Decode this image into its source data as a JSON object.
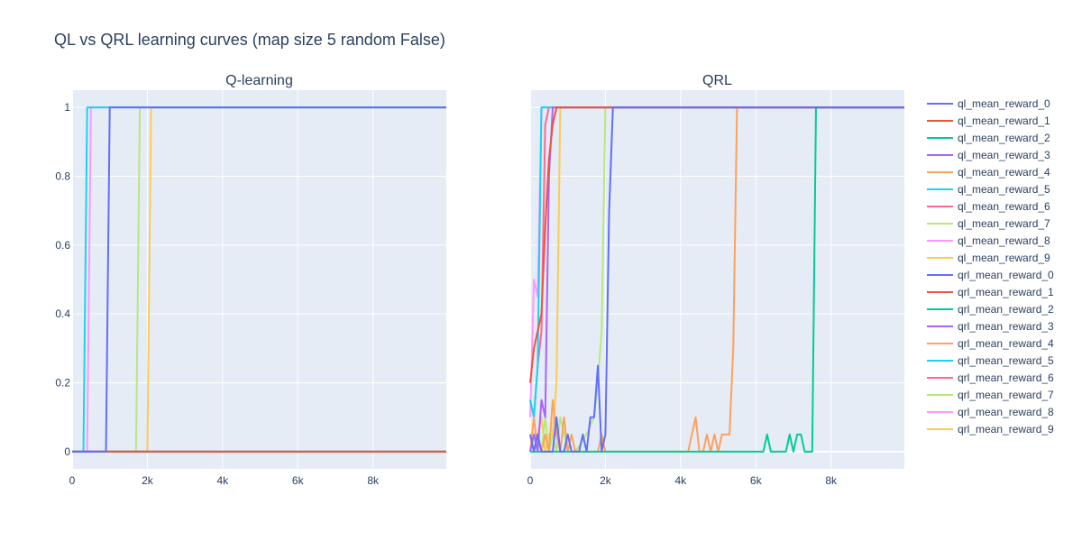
{
  "title": "QL vs QRL learning curves (map size 5 random False)",
  "chart_data": {
    "type": "line",
    "title": "QL vs QRL learning curves (map size 5 random False)",
    "grid": true,
    "legend_position": "right",
    "xlim": [
      0,
      9950
    ],
    "ylim": [
      -0.05,
      1.05
    ],
    "x_ticks": [
      {
        "value": 0,
        "label": "0"
      },
      {
        "value": 2000,
        "label": "2k"
      },
      {
        "value": 4000,
        "label": "4k"
      },
      {
        "value": 6000,
        "label": "6k"
      },
      {
        "value": 8000,
        "label": "8k"
      }
    ],
    "y_ticks": [
      {
        "value": 0,
        "label": "0"
      },
      {
        "value": 0.2,
        "label": "0.2"
      },
      {
        "value": 0.4,
        "label": "0.4"
      },
      {
        "value": 0.6,
        "label": "0.6"
      },
      {
        "value": 0.8,
        "label": "0.8"
      },
      {
        "value": 1,
        "label": "1"
      }
    ],
    "subplots": [
      {
        "title": "Q-learning",
        "series": [
          {
            "name": "ql_mean_reward_0",
            "color": "#636efa",
            "points": [
              [
                0,
                0
              ],
              [
                900,
                0
              ],
              [
                1000,
                1
              ],
              [
                9950,
                1
              ]
            ]
          },
          {
            "name": "ql_mean_reward_1",
            "color": "#EF553B",
            "points": [
              [
                0,
                0
              ],
              [
                9950,
                0
              ]
            ]
          },
          {
            "name": "ql_mean_reward_2",
            "color": "#00cc96",
            "points": [
              [
                0,
                0
              ],
              [
                9950,
                0
              ]
            ]
          },
          {
            "name": "ql_mean_reward_3",
            "color": "#ab63fa",
            "points": [
              [
                0,
                0
              ],
              [
                9950,
                0
              ]
            ]
          },
          {
            "name": "ql_mean_reward_4",
            "color": "#FFA15A",
            "points": [
              [
                0,
                0
              ],
              [
                9950,
                0
              ]
            ]
          },
          {
            "name": "ql_mean_reward_5",
            "color": "#19d3f3",
            "points": [
              [
                0,
                0
              ],
              [
                300,
                0
              ],
              [
                400,
                1
              ],
              [
                9950,
                1
              ]
            ]
          },
          {
            "name": "ql_mean_reward_6",
            "color": "#FF6692",
            "points": [
              [
                0,
                0
              ],
              [
                9950,
                0
              ]
            ]
          },
          {
            "name": "ql_mean_reward_7",
            "color": "#B6E880",
            "points": [
              [
                0,
                0
              ],
              [
                1700,
                0
              ],
              [
                1800,
                1
              ],
              [
                9950,
                1
              ]
            ]
          },
          {
            "name": "ql_mean_reward_8",
            "color": "#FF97FF",
            "points": [
              [
                0,
                0
              ],
              [
                400,
                0
              ],
              [
                500,
                1
              ],
              [
                9950,
                1
              ]
            ]
          },
          {
            "name": "ql_mean_reward_9",
            "color": "#FECB52",
            "points": [
              [
                0,
                0
              ],
              [
                2000,
                0
              ],
              [
                2100,
                1
              ],
              [
                9950,
                1
              ]
            ]
          }
        ]
      },
      {
        "title": "QRL",
        "series": [
          {
            "name": "qrl_mean_reward_0",
            "color": "#636efa",
            "points": [
              [
                0,
                0.05
              ],
              [
                100,
                0
              ],
              [
                200,
                0.05
              ],
              [
                300,
                0
              ],
              [
                400,
                0
              ],
              [
                500,
                0
              ],
              [
                600,
                0
              ],
              [
                700,
                0.1
              ],
              [
                800,
                0
              ],
              [
                900,
                0
              ],
              [
                1000,
                0.05
              ],
              [
                1100,
                0
              ],
              [
                1200,
                0
              ],
              [
                1300,
                0
              ],
              [
                1400,
                0.05
              ],
              [
                1500,
                0
              ],
              [
                1600,
                0.1
              ],
              [
                1700,
                0.1
              ],
              [
                1800,
                0.25
              ],
              [
                1900,
                0
              ],
              [
                2000,
                0.05
              ],
              [
                2100,
                0.7
              ],
              [
                2200,
                1
              ],
              [
                9950,
                1
              ]
            ]
          },
          {
            "name": "qrl_mean_reward_1",
            "color": "#EF553B",
            "points": [
              [
                0,
                0.2
              ],
              [
                100,
                0.3
              ],
              [
                200,
                0.35
              ],
              [
                300,
                0.4
              ],
              [
                400,
                0.65
              ],
              [
                500,
                0.85
              ],
              [
                600,
                0.95
              ],
              [
                700,
                1
              ],
              [
                9950,
                1
              ]
            ]
          },
          {
            "name": "qrl_mean_reward_2",
            "color": "#00cc96",
            "points": [
              [
                0,
                0
              ],
              [
                4400,
                0
              ],
              [
                5000,
                0
              ],
              [
                6000,
                0
              ],
              [
                6200,
                0
              ],
              [
                6300,
                0.05
              ],
              [
                6400,
                0
              ],
              [
                6700,
                0
              ],
              [
                6800,
                0
              ],
              [
                6900,
                0.05
              ],
              [
                7000,
                0
              ],
              [
                7100,
                0.05
              ],
              [
                7200,
                0.05
              ],
              [
                7300,
                0
              ],
              [
                7500,
                0
              ],
              [
                7600,
                1
              ],
              [
                9950,
                1
              ]
            ]
          },
          {
            "name": "qrl_mean_reward_3",
            "color": "#ab63fa",
            "points": [
              [
                0,
                0
              ],
              [
                100,
                0.05
              ],
              [
                200,
                0
              ],
              [
                300,
                0.15
              ],
              [
                400,
                0.1
              ],
              [
                500,
                0.8
              ],
              [
                600,
                1
              ],
              [
                9950,
                1
              ]
            ]
          },
          {
            "name": "qrl_mean_reward_4",
            "color": "#FFA15A",
            "points": [
              [
                0,
                0
              ],
              [
                100,
                0.1
              ],
              [
                200,
                0
              ],
              [
                300,
                0
              ],
              [
                400,
                0.05
              ],
              [
                500,
                0
              ],
              [
                600,
                0.15
              ],
              [
                700,
                0.05
              ],
              [
                800,
                0
              ],
              [
                900,
                0.1
              ],
              [
                1000,
                0
              ],
              [
                1100,
                0.05
              ],
              [
                1200,
                0
              ],
              [
                1800,
                0
              ],
              [
                1900,
                0.05
              ],
              [
                2000,
                0
              ],
              [
                4200,
                0
              ],
              [
                4300,
                0.05
              ],
              [
                4400,
                0.1
              ],
              [
                4500,
                0
              ],
              [
                4600,
                0
              ],
              [
                4700,
                0.05
              ],
              [
                4800,
                0
              ],
              [
                4900,
                0.05
              ],
              [
                5000,
                0
              ],
              [
                5100,
                0.05
              ],
              [
                5200,
                0.05
              ],
              [
                5300,
                0.05
              ],
              [
                5400,
                0.3
              ],
              [
                5500,
                1
              ],
              [
                9950,
                1
              ]
            ]
          },
          {
            "name": "qrl_mean_reward_5",
            "color": "#19d3f3",
            "points": [
              [
                0,
                0.15
              ],
              [
                100,
                0.1
              ],
              [
                200,
                0.25
              ],
              [
                300,
                1
              ],
              [
                9950,
                1
              ]
            ]
          },
          {
            "name": "qrl_mean_reward_6",
            "color": "#FF6692",
            "points": [
              [
                0,
                0.15
              ],
              [
                100,
                0.1
              ],
              [
                200,
                0.25
              ],
              [
                300,
                0.35
              ],
              [
                400,
                0.95
              ],
              [
                500,
                1
              ],
              [
                9950,
                1
              ]
            ]
          },
          {
            "name": "qrl_mean_reward_7",
            "color": "#B6E880",
            "points": [
              [
                0,
                0
              ],
              [
                100,
                0.05
              ],
              [
                200,
                0
              ],
              [
                300,
                0
              ],
              [
                400,
                0.1
              ],
              [
                500,
                0
              ],
              [
                600,
                0.05
              ],
              [
                700,
                0
              ],
              [
                800,
                0.1
              ],
              [
                900,
                0.05
              ],
              [
                1000,
                0
              ],
              [
                1200,
                0
              ],
              [
                1500,
                0.05
              ],
              [
                1700,
                0.1
              ],
              [
                1800,
                0.2
              ],
              [
                1900,
                0.35
              ],
              [
                2000,
                1
              ],
              [
                9950,
                1
              ]
            ]
          },
          {
            "name": "qrl_mean_reward_8",
            "color": "#FF97FF",
            "points": [
              [
                0,
                0.1
              ],
              [
                100,
                0.5
              ],
              [
                200,
                0.45
              ],
              [
                300,
                1
              ],
              [
                9950,
                1
              ]
            ]
          },
          {
            "name": "qrl_mean_reward_9",
            "color": "#FECB52",
            "points": [
              [
                0,
                0.05
              ],
              [
                100,
                0
              ],
              [
                200,
                0.05
              ],
              [
                300,
                0.1
              ],
              [
                400,
                0
              ],
              [
                500,
                0.05
              ],
              [
                600,
                0.05
              ],
              [
                700,
                0.2
              ],
              [
                800,
                1
              ],
              [
                9950,
                1
              ]
            ]
          }
        ]
      }
    ]
  }
}
